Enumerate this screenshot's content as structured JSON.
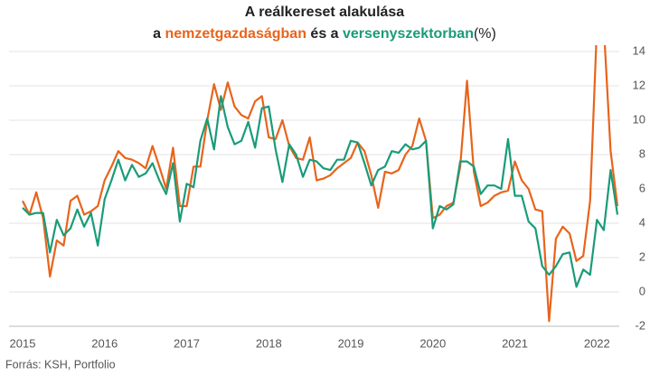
{
  "chart_data": {
    "type": "line",
    "title": "A reálkereset alakulása",
    "subtitle": [
      "a ",
      " és a ",
      "(%)"
    ],
    "source": "Forrás: KSH, Portfolio",
    "categories": [
      "2015",
      null,
      null,
      null,
      null,
      null,
      null,
      null,
      null,
      null,
      null,
      null,
      "2016",
      null,
      null,
      null,
      null,
      null,
      null,
      null,
      null,
      null,
      null,
      null,
      "2017",
      null,
      null,
      null,
      null,
      null,
      null,
      null,
      null,
      null,
      null,
      null,
      "2018",
      null,
      null,
      null,
      null,
      null,
      null,
      null,
      null,
      null,
      null,
      null,
      "2019",
      null,
      null,
      null,
      null,
      null,
      null,
      null,
      null,
      null,
      null,
      null,
      "2020",
      null,
      null,
      null,
      null,
      null,
      null,
      null,
      null,
      null,
      null,
      null,
      "2021",
      null,
      null,
      null,
      null,
      null,
      null,
      null,
      null,
      null,
      null,
      null,
      "2022",
      null,
      null,
      null
    ],
    "series": [
      {
        "name": "nemzetgazdaságban",
        "color": "#e8641b",
        "values": [
          5.3,
          4.5,
          5.8,
          4.3,
          0.9,
          3.0,
          2.7,
          5.3,
          5.6,
          4.5,
          4.7,
          5.0,
          6.5,
          7.3,
          8.2,
          7.8,
          7.7,
          7.5,
          7.2,
          8.5,
          7.3,
          6.0,
          8.4,
          5.0,
          5.0,
          7.3,
          7.3,
          10.0,
          12.1,
          10.6,
          12.2,
          10.8,
          10.3,
          10.1,
          11.1,
          11.4,
          9.0,
          8.9,
          10.0,
          8.5,
          7.8,
          7.7,
          9.0,
          6.5,
          6.6,
          6.8,
          7.2,
          7.5,
          7.8,
          8.7,
          8.2,
          6.8,
          4.9,
          7.0,
          6.9,
          7.1,
          8.0,
          8.5,
          10.1,
          8.8,
          4.3,
          4.5,
          5.0,
          5.2,
          7.3,
          12.3,
          7.0,
          5.0,
          5.2,
          5.6,
          5.8,
          5.9,
          7.6,
          6.5,
          6.0,
          4.8,
          4.7,
          -1.7,
          3.1,
          3.8,
          3.4,
          1.8,
          2.1,
          5.3,
          15.5,
          15.5,
          8.2,
          5.0
        ]
      },
      {
        "name": "versenyszektorban",
        "color": "#1a9b7a",
        "values": [
          4.9,
          4.5,
          4.6,
          4.6,
          2.3,
          4.2,
          3.3,
          3.7,
          4.8,
          3.8,
          4.6,
          2.7,
          5.4,
          6.5,
          7.7,
          6.5,
          7.4,
          6.7,
          6.9,
          7.5,
          6.5,
          5.7,
          7.5,
          4.1,
          6.3,
          6.1,
          8.8,
          10.1,
          8.3,
          11.4,
          9.6,
          8.6,
          8.8,
          9.9,
          8.4,
          10.7,
          10.8,
          8.3,
          6.4,
          8.6,
          8.0,
          6.7,
          7.7,
          7.6,
          7.2,
          7.1,
          7.7,
          7.7,
          8.8,
          8.7,
          7.5,
          6.2,
          7.1,
          7.3,
          8.2,
          8.1,
          8.6,
          8.3,
          8.4,
          8.8,
          3.7,
          5.0,
          4.8,
          5.1,
          7.6,
          7.6,
          7.3,
          5.7,
          6.2,
          6.2,
          6.0,
          8.9,
          5.6,
          5.6,
          4.1,
          3.7,
          1.5,
          1.0,
          1.5,
          2.2,
          2.3,
          0.3,
          1.3,
          1.0,
          4.2,
          3.6,
          7.1,
          4.5
        ]
      }
    ],
    "ylim": [
      -2,
      14
    ],
    "yticks": [
      -2,
      0,
      2,
      4,
      6,
      8,
      10,
      12,
      14
    ],
    "grid": true
  }
}
